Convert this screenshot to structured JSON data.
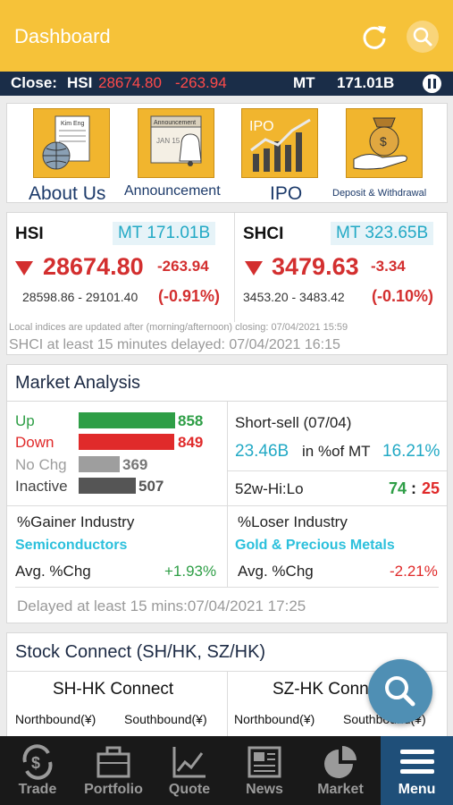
{
  "header": {
    "title": "Dashboard"
  },
  "ticker": {
    "close_label": "Close:",
    "index": "HSI",
    "value": "28674.80",
    "change": "-263.94",
    "mt_label": "MT",
    "mt_value": "171.01B"
  },
  "shortcuts": [
    {
      "label": "About Us",
      "icon": "newspaper-globe-icon"
    },
    {
      "label": "Announcement",
      "icon": "calendar-bell-icon"
    },
    {
      "label": "IPO",
      "icon": "ipo-chart-icon"
    },
    {
      "label": "Deposit & Withdrawal",
      "icon": "money-bag-hand-icon"
    }
  ],
  "shortcut_art": {
    "about_paper_text": "Kim Eng",
    "announcement_card_text": "Announcement",
    "announcement_date": "JAN 15",
    "ipo_text": "IPO"
  },
  "indices": {
    "hsi": {
      "name": "HSI",
      "mt": "MT 171.01B",
      "value": "28674.80",
      "change": "-263.94",
      "range": "28598.86 - 29101.40",
      "pct": "(-0.91%)"
    },
    "shci": {
      "name": "SHCI",
      "mt": "MT 323.65B",
      "value": "3479.63",
      "change": "-3.34",
      "range": "3453.20 - 3483.42",
      "pct": "(-0.10%)"
    },
    "note": "Local indices are updated after (morning/afternoon) closing: 07/04/2021 15:59",
    "delay_note": "SHCI at least 15 minutes delayed: 07/04/2021 16:15"
  },
  "market_analysis": {
    "title": "Market Analysis",
    "breadth": [
      {
        "label": "Up",
        "value": "858",
        "color": "#2e9e46"
      },
      {
        "label": "Down",
        "value": "849",
        "color": "#e02a2a"
      },
      {
        "label": "No Chg",
        "value": "369",
        "color": "#9e9e9e"
      },
      {
        "label": "Inactive",
        "value": "507",
        "color": "#555555"
      }
    ],
    "short_sell_label": "Short-sell  (07/04)",
    "short_sell_value": "23.46B",
    "short_sell_pct_label": "in %of MT",
    "short_sell_pct": "16.21%",
    "hi_lo_label": "52w-Hi:Lo",
    "hi": "74",
    "lo_sep": ":",
    "lo": "25",
    "gainer": {
      "title": "%Gainer Industry",
      "industry": "Semiconductors",
      "avg_label": "Avg. %Chg",
      "avg": "+1.93%"
    },
    "loser": {
      "title": "%Loser Industry",
      "industry": "Gold & Precious Metals",
      "avg_label": "Avg. %Chg",
      "avg": "-2.21%"
    },
    "delayed": "Delayed at least 15 mins:07/04/2021 17:25"
  },
  "stock_connect": {
    "title": "Stock Connect (SH/HK, SZ/HK)",
    "sh_hk": "SH-HK Connect",
    "sz_hk": "SZ-HK Connect",
    "northbound": "Northbound(¥)",
    "southbound": "Southbound(¥)"
  },
  "nav": [
    {
      "label": "Trade",
      "icon": "dollar-exchange-icon"
    },
    {
      "label": "Portfolio",
      "icon": "briefcase-icon"
    },
    {
      "label": "Quote",
      "icon": "line-chart-icon"
    },
    {
      "label": "News",
      "icon": "newspaper-icon"
    },
    {
      "label": "Market",
      "icon": "pie-chart-icon"
    },
    {
      "label": "Menu",
      "icon": "hamburger-icon"
    }
  ]
}
